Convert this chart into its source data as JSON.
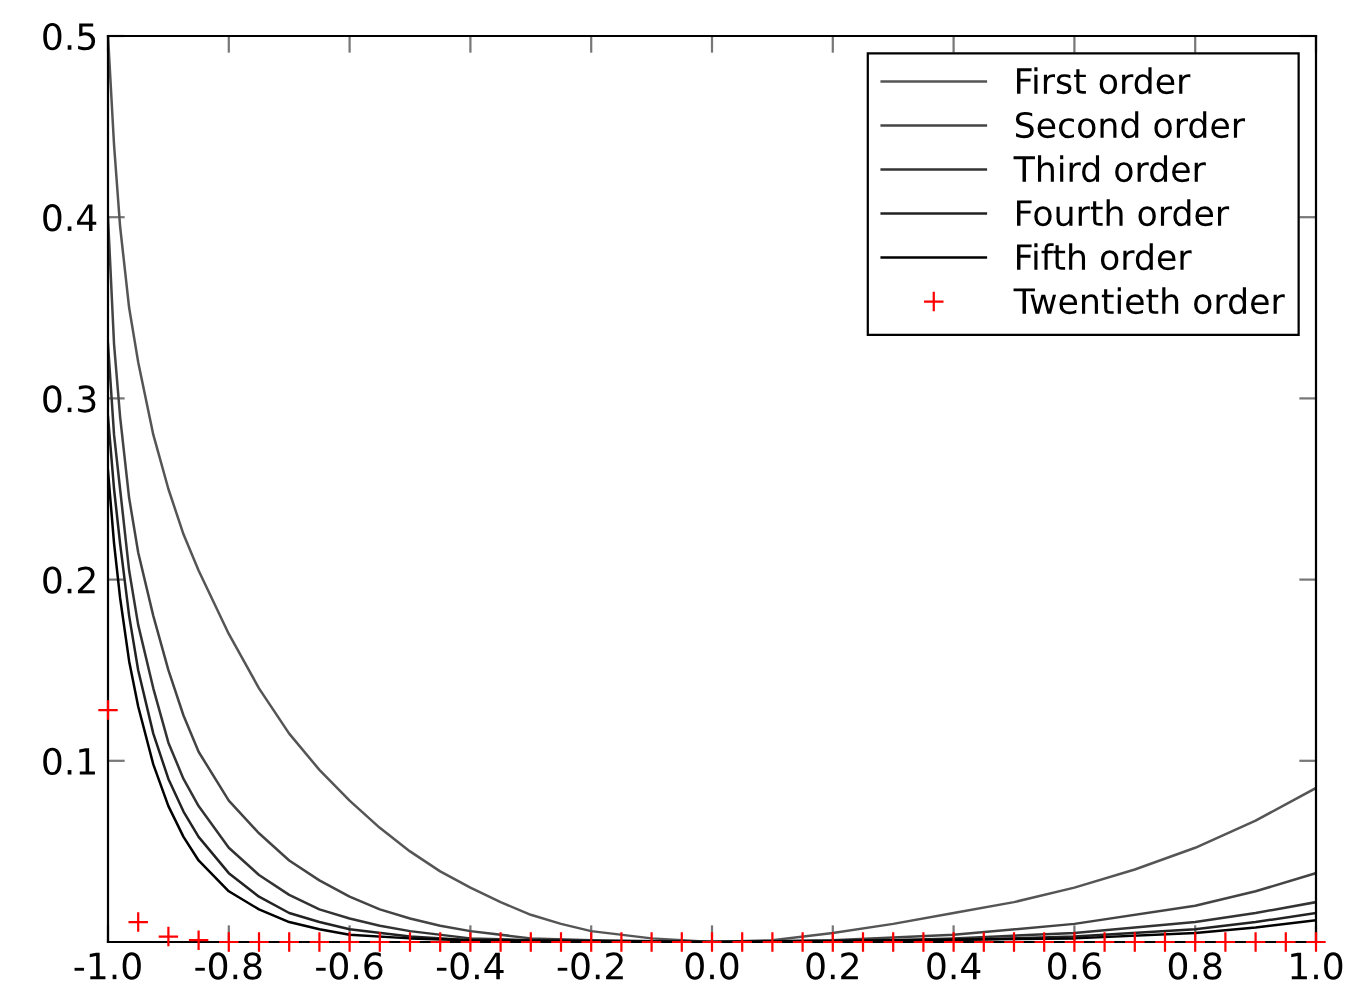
{
  "chart_data": {
    "type": "line",
    "xlim": [
      -1.0,
      1.0
    ],
    "ylim": [
      0,
      0.5
    ],
    "xticks": [
      {
        "value": -1,
        "label": "-1.0"
      },
      -0.8,
      -0.6,
      -0.4,
      -0.2,
      {
        "value": 0,
        "label": "0.0"
      },
      0.2,
      0.4,
      0.6,
      0.8,
      {
        "value": 1,
        "label": "1.0"
      }
    ],
    "yticks": [
      0.1,
      0.2,
      0.3,
      0.4,
      0.5
    ],
    "grid": false,
    "legend": "top right",
    "series": [
      {
        "name": "First order",
        "color": "#555555",
        "x": [
          -1.0,
          -0.99,
          -0.98,
          -0.965,
          -0.95,
          -0.925,
          -0.9,
          -0.875,
          -0.85,
          -0.8,
          -0.75,
          -0.7,
          -0.65,
          -0.6,
          -0.55,
          -0.5,
          -0.45,
          -0.4,
          -0.35,
          -0.3,
          -0.25,
          -0.2,
          -0.1,
          0.0,
          0.1,
          0.2,
          0.3,
          0.4,
          0.5,
          0.6,
          0.7,
          0.8,
          0.9,
          1.0
        ],
        "values": [
          0.5,
          0.44,
          0.395,
          0.35,
          0.32,
          0.28,
          0.25,
          0.225,
          0.205,
          0.17,
          0.14,
          0.115,
          0.095,
          0.078,
          0.063,
          0.05,
          0.039,
          0.03,
          0.022,
          0.015,
          0.01,
          0.006,
          0.002,
          0.0,
          0.001,
          0.005,
          0.01,
          0.016,
          0.022,
          0.03,
          0.04,
          0.052,
          0.067,
          0.085
        ]
      },
      {
        "name": "Second order",
        "color": "#444444",
        "x": [
          -1.0,
          -0.99,
          -0.98,
          -0.965,
          -0.95,
          -0.925,
          -0.9,
          -0.875,
          -0.85,
          -0.8,
          -0.75,
          -0.7,
          -0.65,
          -0.6,
          -0.55,
          -0.5,
          -0.45,
          -0.4,
          -0.3,
          -0.2,
          0.0,
          0.2,
          0.4,
          0.6,
          0.8,
          0.9,
          1.0
        ],
        "values": [
          0.4,
          0.33,
          0.29,
          0.245,
          0.215,
          0.18,
          0.15,
          0.125,
          0.105,
          0.078,
          0.06,
          0.045,
          0.034,
          0.025,
          0.018,
          0.013,
          0.009,
          0.006,
          0.002,
          0.001,
          0.0,
          0.001,
          0.004,
          0.01,
          0.02,
          0.028,
          0.038
        ]
      },
      {
        "name": "Third order",
        "color": "#333333",
        "x": [
          -1.0,
          -0.99,
          -0.98,
          -0.965,
          -0.95,
          -0.925,
          -0.9,
          -0.875,
          -0.85,
          -0.8,
          -0.75,
          -0.7,
          -0.65,
          -0.6,
          -0.55,
          -0.5,
          -0.4,
          -0.3,
          0.0,
          0.2,
          0.4,
          0.6,
          0.8,
          0.9,
          1.0
        ],
        "values": [
          0.33,
          0.28,
          0.25,
          0.205,
          0.175,
          0.14,
          0.11,
          0.09,
          0.075,
          0.052,
          0.037,
          0.026,
          0.018,
          0.013,
          0.009,
          0.006,
          0.002,
          0.001,
          0.0,
          0.0,
          0.002,
          0.005,
          0.011,
          0.016,
          0.022
        ]
      },
      {
        "name": "Fourth order",
        "color": "#222222",
        "x": [
          -1.0,
          -0.99,
          -0.98,
          -0.965,
          -0.95,
          -0.925,
          -0.9,
          -0.875,
          -0.85,
          -0.8,
          -0.75,
          -0.7,
          -0.65,
          -0.6,
          -0.5,
          -0.4,
          0.0,
          0.4,
          0.6,
          0.8,
          0.9,
          1.0
        ],
        "values": [
          0.29,
          0.25,
          0.22,
          0.18,
          0.15,
          0.115,
          0.09,
          0.072,
          0.058,
          0.038,
          0.025,
          0.016,
          0.011,
          0.007,
          0.003,
          0.001,
          0.0,
          0.001,
          0.003,
          0.007,
          0.011,
          0.016
        ]
      },
      {
        "name": "Fifth order",
        "color": "#000000",
        "x": [
          -1.0,
          -0.99,
          -0.98,
          -0.965,
          -0.95,
          -0.925,
          -0.9,
          -0.875,
          -0.85,
          -0.8,
          -0.75,
          -0.7,
          -0.65,
          -0.6,
          -0.5,
          -0.4,
          0.0,
          0.6,
          0.8,
          0.9,
          1.0
        ],
        "values": [
          0.26,
          0.22,
          0.19,
          0.155,
          0.13,
          0.098,
          0.075,
          0.058,
          0.045,
          0.028,
          0.018,
          0.011,
          0.007,
          0.004,
          0.002,
          0.001,
          0.0,
          0.002,
          0.005,
          0.008,
          0.012
        ]
      },
      {
        "name": "Twentieth order",
        "type": "scatter",
        "marker": "cross",
        "color": "#ff0000",
        "x": [
          -1.0,
          -0.95,
          -0.9,
          -0.85,
          -0.8,
          -0.75,
          -0.7,
          -0.65,
          -0.6,
          -0.55,
          -0.5,
          -0.45,
          -0.4,
          -0.35,
          -0.3,
          -0.25,
          -0.2,
          -0.15,
          -0.1,
          -0.05,
          0.0,
          0.05,
          0.1,
          0.15,
          0.2,
          0.25,
          0.3,
          0.35,
          0.4,
          0.45,
          0.5,
          0.55,
          0.6,
          0.65,
          0.7,
          0.75,
          0.8,
          0.85,
          0.9,
          0.95,
          1.0
        ],
        "values": [
          0.128,
          0.011,
          0.003,
          0.001,
          0,
          0,
          0,
          0,
          0,
          0,
          0,
          0,
          0,
          0,
          0,
          0,
          0,
          0,
          0,
          0,
          0,
          0,
          0,
          0,
          0,
          0,
          0,
          0,
          0,
          0,
          0,
          0,
          0,
          0,
          0,
          0,
          0,
          0,
          0,
          0,
          0
        ]
      }
    ]
  }
}
